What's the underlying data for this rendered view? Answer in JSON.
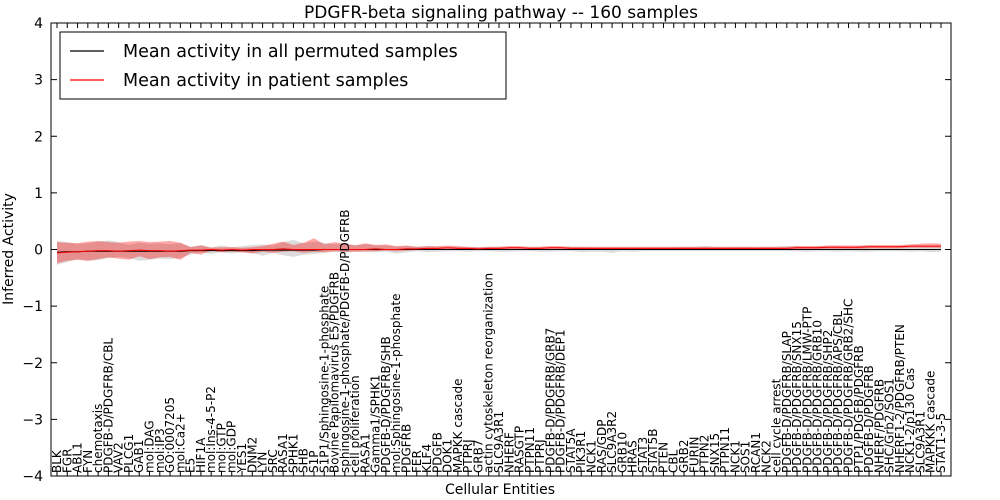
{
  "chart_data": {
    "type": "line",
    "title": "PDGFR-beta signaling pathway -- 160 samples",
    "xlabel": "Cellular Entities",
    "ylabel": "Inferred Activity",
    "ylim": [
      -4,
      4
    ],
    "yticks": [
      -4,
      -3,
      -2,
      -1,
      0,
      1,
      2,
      3,
      4
    ],
    "ytick_labels": [
      "−4",
      "−3",
      "−2",
      "−1",
      "0",
      "1",
      "2",
      "3",
      "4"
    ],
    "grid": false,
    "legend_position": "top-left",
    "categories": [
      "BLK",
      "FGR",
      "ABL1",
      "FYN",
      "chemotaxis",
      "PDGFB-D/PDGFRB/CBL",
      "VAV2",
      "PLCG1",
      "GAB1",
      "mol:DAG",
      "mol:IP3",
      "GO:0007205",
      "mol:Ca2+",
      "E5",
      "HIF1A",
      "mol:Ins-4-5-P2",
      "mol:GTP",
      "mol:GDP",
      "YES1",
      "DNM2",
      "LYN",
      "SRC",
      "RASA1",
      "SPHK1",
      "SHB",
      "S1P",
      "S1P1/Sphingosine-1-phosphate",
      "Bovine Papilomavirus E5/PDGFRB",
      "sphingosine-1-phosphate/PDGFB-D/PDGFRB",
      "cell proliferation",
      "RASA1",
      "Gamma1/SPHK1",
      "PDGFB-D/PDGFRB/SHB",
      "mol:Sphingosine-1-phosphate",
      "PDGFRB",
      "FER",
      "KLF4",
      "PDGFB",
      "DOK1",
      "MAPKK cascade",
      "PTPRJ",
      "GRB7",
      "actin cytoskeleton reorganization",
      "SLC9A3R1",
      "NHERF",
      "RASGTP",
      "PTPN11",
      "PTPRJ",
      "PDGFB-D/PDGFRB/GRB7",
      "PDGFB-D/PDGFRB/DEP1",
      "STAT5A",
      "PIK3R1",
      "NCK1",
      "RAS/GDP",
      "SLC9A3R2",
      "GRB10",
      "HRAS",
      "STAT3",
      "STAT5B",
      "PTEN",
      "CBL",
      "GRB2",
      "FURIN",
      "PTPN2",
      "SNX15",
      "PTPN11",
      "NCK1",
      "SOS1",
      "RCAN1",
      "NCK2",
      "cell cycle arrest",
      "PDGFB-D/PDGFRB/SLAP",
      "PDGFB-D/PDGFRB/SNX15",
      "PDGFB-D/PDGFRB/LMW-PTP",
      "PDGFB-D/PDGFRB/GRB10",
      "PDGFB-D/PDGFRB/SHP2",
      "PDGFB-D/PDGFRB/APS/CBL",
      "PDGFB-D/PDGFRB/GRB2/SHC",
      "PTP1/PDGFB/PDGFRB",
      "PDGFB-D/PDGFRB",
      "NHERF/PDGFRB",
      "SHC/Grb2/SOS1",
      "NHERF1-2/PDGFRB/PTEN",
      "NCK1-2/p130 Cas",
      "SLC9A3R1",
      "MAPKKK cascade",
      "STAT1-3-5"
    ],
    "series": [
      {
        "name": "Mean activity in all permuted samples",
        "color": "#000000",
        "values": [
          -0.05,
          -0.04,
          -0.04,
          -0.03,
          -0.03,
          -0.03,
          -0.03,
          -0.03,
          -0.03,
          -0.03,
          -0.03,
          -0.03,
          -0.03,
          -0.02,
          -0.02,
          -0.02,
          -0.02,
          -0.02,
          -0.02,
          -0.02,
          -0.01,
          -0.01,
          -0.01,
          -0.01,
          -0.01,
          -0.01,
          0.0,
          0.0,
          0.0,
          0.0,
          0.0,
          0.0,
          0.0,
          0.0,
          0.0,
          0.0,
          0.0,
          0.0,
          0.0,
          0.0,
          0.0,
          0.0,
          0.0,
          0.0,
          0.0,
          0.0,
          0.0,
          0.0,
          0.0,
          0.0,
          0.0,
          0.0,
          0.0,
          0.0,
          0.0,
          0.0,
          0.0,
          0.0,
          0.0,
          0.0,
          0.0,
          0.0,
          0.0,
          0.0,
          0.0,
          0.0,
          0.0,
          0.0,
          0.0,
          0.0,
          0.0,
          0.0,
          0.0,
          0.0,
          0.0,
          0.0,
          0.0,
          0.0,
          0.0,
          0.0,
          0.0,
          0.0,
          0.0,
          0.0,
          0.0,
          0.0,
          0.0
        ],
        "lower": [
          -0.27,
          -0.22,
          -0.17,
          -0.2,
          -0.19,
          -0.15,
          -0.13,
          -0.15,
          -0.2,
          -0.18,
          -0.16,
          -0.17,
          -0.15,
          -0.09,
          -0.05,
          -0.08,
          -0.05,
          -0.07,
          -0.05,
          -0.06,
          -0.11,
          -0.06,
          -0.1,
          -0.13,
          -0.09,
          -0.08,
          -0.06,
          -0.04,
          -0.06,
          -0.04,
          -0.05,
          -0.05,
          -0.04,
          -0.07,
          -0.05,
          -0.03,
          -0.05,
          -0.04,
          -0.03,
          -0.03,
          -0.04,
          -0.03,
          -0.03,
          -0.04,
          -0.04,
          -0.03,
          -0.03,
          -0.04,
          -0.04,
          -0.03,
          -0.03,
          -0.05,
          -0.04,
          -0.04,
          -0.06,
          -0.03,
          -0.04,
          -0.03,
          -0.03,
          -0.03,
          -0.03,
          -0.03,
          -0.03,
          -0.03,
          -0.03,
          -0.03,
          -0.03,
          -0.03,
          -0.03,
          -0.03,
          -0.03,
          -0.03,
          -0.03,
          -0.04,
          -0.03,
          -0.03,
          -0.04,
          -0.03,
          -0.04,
          -0.04,
          -0.03,
          -0.03,
          -0.03,
          -0.04,
          -0.03,
          -0.05,
          -0.04
        ],
        "upper": [
          0.15,
          0.13,
          0.1,
          0.11,
          0.14,
          0.16,
          0.13,
          0.08,
          0.12,
          0.1,
          0.11,
          0.09,
          0.12,
          0.05,
          0.08,
          0.04,
          0.07,
          0.04,
          0.06,
          0.08,
          0.09,
          0.07,
          0.13,
          0.17,
          0.11,
          0.14,
          0.12,
          0.09,
          0.1,
          0.08,
          0.09,
          0.07,
          0.07,
          0.05,
          0.06,
          0.05,
          0.06,
          0.05,
          0.04,
          0.05,
          0.04,
          0.04,
          0.05,
          0.05,
          0.05,
          0.04,
          0.04,
          0.05,
          0.05,
          0.04,
          0.05,
          0.05,
          0.04,
          0.04,
          0.04,
          0.04,
          0.04,
          0.04,
          0.04,
          0.04,
          0.04,
          0.05,
          0.05,
          0.06,
          0.05,
          0.04,
          0.05,
          0.05,
          0.04,
          0.05,
          0.05,
          0.06,
          0.06,
          0.05,
          0.06,
          0.06,
          0.06,
          0.05,
          0.06,
          0.06,
          0.06,
          0.05,
          0.06,
          0.06,
          0.07,
          0.06,
          0.06
        ]
      },
      {
        "name": "Mean activity in patient samples",
        "color": "#ff0000",
        "values": [
          -0.06,
          -0.05,
          -0.04,
          -0.03,
          -0.02,
          -0.02,
          -0.03,
          -0.02,
          -0.01,
          -0.02,
          -0.02,
          -0.03,
          -0.02,
          -0.01,
          -0.01,
          0.0,
          -0.01,
          0.0,
          -0.01,
          0.0,
          0.0,
          0.0,
          0.01,
          0.0,
          0.0,
          0.0,
          0.0,
          0.0,
          0.0,
          0.0,
          0.0,
          0.01,
          0.0,
          0.0,
          0.01,
          0.01,
          0.02,
          0.02,
          0.03,
          0.02,
          0.02,
          0.01,
          0.02,
          0.02,
          0.03,
          0.03,
          0.02,
          0.02,
          0.03,
          0.03,
          0.02,
          0.02,
          0.02,
          0.02,
          0.02,
          0.02,
          0.02,
          0.02,
          0.02,
          0.02,
          0.02,
          0.02,
          0.02,
          0.02,
          0.02,
          0.02,
          0.02,
          0.02,
          0.02,
          0.02,
          0.02,
          0.02,
          0.03,
          0.03,
          0.03,
          0.04,
          0.04,
          0.04,
          0.04,
          0.05,
          0.05,
          0.05,
          0.05,
          0.06,
          0.06,
          0.06,
          0.06
        ],
        "lower": [
          -0.24,
          -0.2,
          -0.18,
          -0.2,
          -0.17,
          -0.14,
          -0.16,
          -0.18,
          -0.12,
          -0.17,
          -0.14,
          -0.13,
          -0.18,
          -0.06,
          -0.09,
          -0.02,
          -0.05,
          -0.03,
          -0.05,
          -0.07,
          -0.04,
          -0.06,
          -0.04,
          -0.03,
          -0.06,
          -0.04,
          -0.05,
          -0.03,
          -0.04,
          -0.04,
          -0.03,
          -0.03,
          -0.02,
          -0.03,
          -0.02,
          -0.01,
          0.0,
          0.0,
          0.0,
          0.0,
          0.0,
          -0.01,
          0.0,
          0.0,
          0.0,
          0.0,
          0.0,
          0.0,
          0.0,
          0.0,
          0.0,
          0.0,
          0.0,
          0.0,
          0.0,
          0.0,
          0.0,
          0.0,
          0.0,
          0.0,
          0.0,
          0.0,
          0.0,
          0.0,
          0.0,
          0.0,
          0.0,
          0.0,
          0.0,
          0.0,
          0.0,
          0.0,
          0.0,
          0.0,
          0.0,
          0.01,
          0.01,
          0.01,
          0.01,
          0.02,
          0.02,
          0.02,
          0.02,
          0.03,
          0.03,
          0.03,
          0.03
        ],
        "upper": [
          0.13,
          0.12,
          0.11,
          0.14,
          0.15,
          0.13,
          0.12,
          0.14,
          0.15,
          0.13,
          0.14,
          0.15,
          0.12,
          0.04,
          0.07,
          0.03,
          0.04,
          0.04,
          0.03,
          0.04,
          0.06,
          0.1,
          0.14,
          0.08,
          0.12,
          0.2,
          0.09,
          0.13,
          0.1,
          0.07,
          0.11,
          0.08,
          0.09,
          0.06,
          0.07,
          0.05,
          0.06,
          0.06,
          0.07,
          0.06,
          0.05,
          0.04,
          0.05,
          0.05,
          0.06,
          0.06,
          0.05,
          0.05,
          0.06,
          0.06,
          0.05,
          0.05,
          0.05,
          0.05,
          0.05,
          0.05,
          0.05,
          0.05,
          0.05,
          0.05,
          0.05,
          0.05,
          0.05,
          0.05,
          0.05,
          0.05,
          0.05,
          0.05,
          0.05,
          0.05,
          0.05,
          0.05,
          0.06,
          0.06,
          0.06,
          0.07,
          0.07,
          0.07,
          0.07,
          0.08,
          0.08,
          0.08,
          0.08,
          0.09,
          0.1,
          0.11,
          0.1
        ]
      }
    ]
  }
}
